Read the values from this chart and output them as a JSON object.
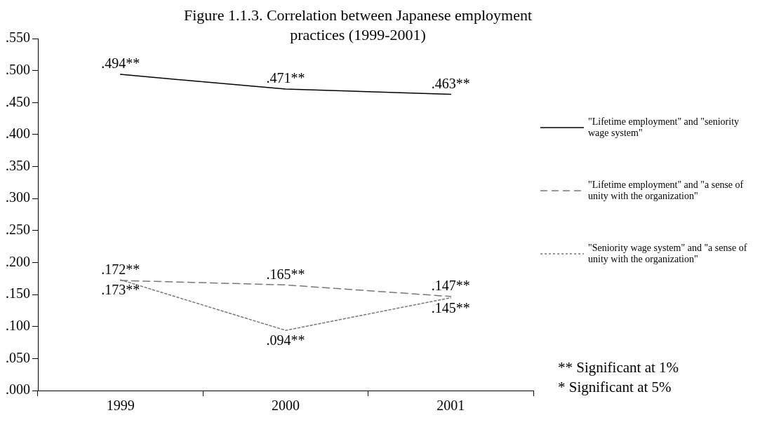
{
  "chart_data": {
    "type": "line",
    "title": "Figure 1.1.3. Correlation  between Japanese employment practices (1999-2001)",
    "categories": [
      "1999",
      "2000",
      "2001"
    ],
    "series": [
      {
        "name": "\"Lifetime employment\" and \"seniority wage system\"",
        "color": "#000000",
        "line_style": "solid",
        "values": [
          0.494,
          0.471,
          0.463
        ],
        "value_labels": [
          ".494**",
          ".471**",
          ".463**"
        ]
      },
      {
        "name": "\"Lifetime employment\" and \"a sense of unity with the organization\"",
        "color": "#777777",
        "line_style": "dashed",
        "values": [
          0.172,
          0.165,
          0.147
        ],
        "value_labels": [
          ".172**",
          ".165**",
          ".147**"
        ]
      },
      {
        "name": "\"Seniority wage system\" and \"a sense of unity with the organization\"",
        "color": "#777777",
        "line_style": "dotted",
        "values": [
          0.173,
          0.094,
          0.145
        ],
        "value_labels": [
          ".173**",
          ".094**",
          ".145**"
        ]
      }
    ],
    "ylim": [
      0,
      0.55
    ],
    "yticks": [
      {
        "value": 0,
        "label": ".000"
      },
      {
        "value": 0.05,
        "label": ".050"
      },
      {
        "value": 0.1,
        "label": ".100"
      },
      {
        "value": 0.15,
        "label": ".150"
      },
      {
        "value": 0.2,
        "label": ".200"
      },
      {
        "value": 0.25,
        "label": ".250"
      },
      {
        "value": 0.3,
        "label": ".300"
      },
      {
        "value": 0.35,
        "label": ".350"
      },
      {
        "value": 0.4,
        "label": ".400"
      },
      {
        "value": 0.45,
        "label": ".450"
      },
      {
        "value": 0.5,
        "label": ".500"
      },
      {
        "value": 0.55,
        "label": ".550"
      }
    ],
    "grid": false,
    "legend": "right",
    "marker": "none",
    "annotations": [
      "** Significant at 1%",
      "* Significant at 5%"
    ]
  }
}
